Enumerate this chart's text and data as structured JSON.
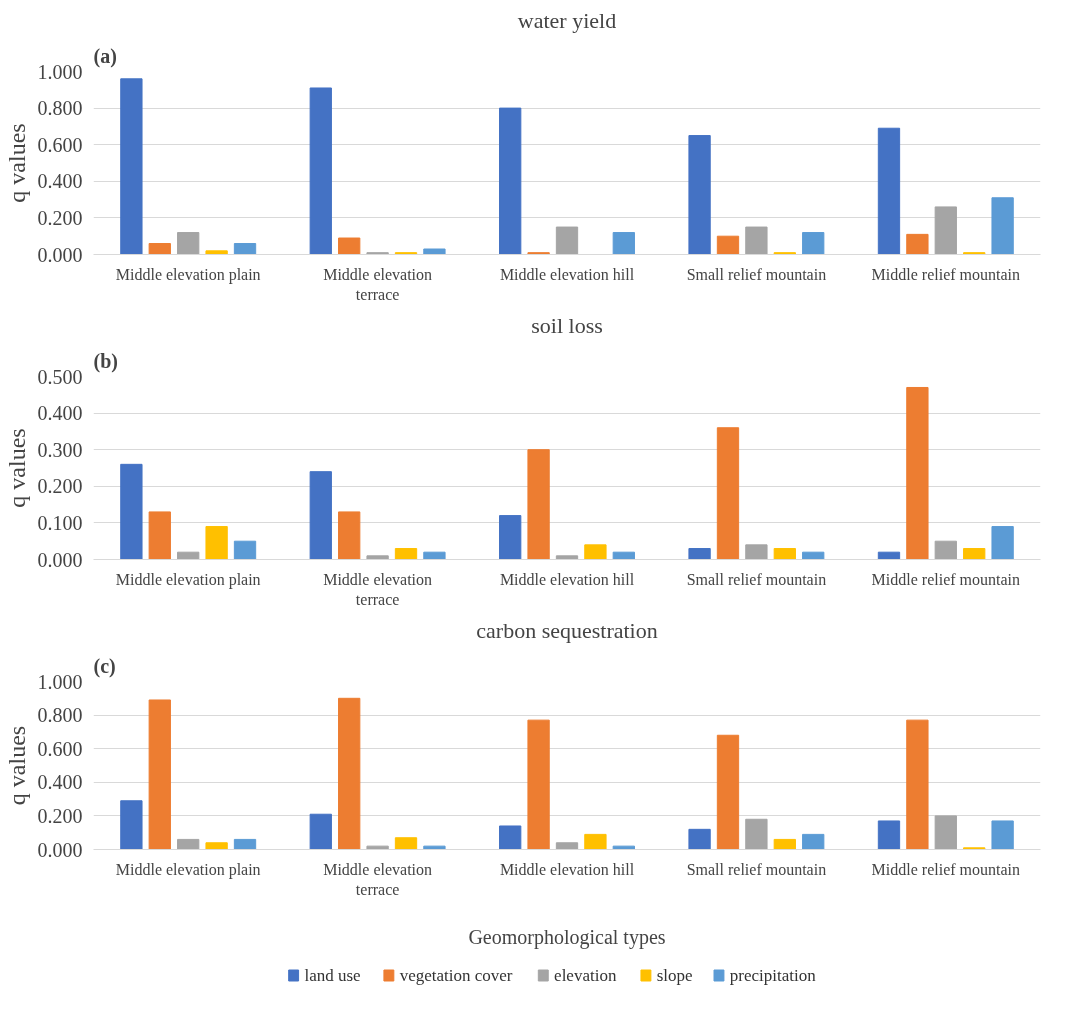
{
  "chart_data": [
    {
      "type": "bar",
      "title": "water yield",
      "annotations": [
        "(a)"
      ],
      "ylabel": "q values",
      "categories": [
        "Middle elevation plain",
        "Middle elevation terrace",
        "Middle elevation hill",
        "Small relief mountain",
        "Middle relief mountain"
      ],
      "ylim": [
        0,
        1.0
      ],
      "yticks": [
        {
          "value": 0,
          "label": "0.000"
        },
        {
          "value": 0.2,
          "label": "0.200"
        },
        {
          "value": 0.4,
          "label": "0.400"
        },
        {
          "value": 0.6,
          "label": "0.600"
        },
        {
          "value": 0.8,
          "label": "0.800"
        },
        {
          "value": 1.0,
          "label": "1.000"
        }
      ],
      "grid": "y",
      "series": [
        {
          "color": "#4472c4",
          "values": [
            0.96,
            0.91,
            0.8,
            0.65,
            0.69
          ]
        },
        {
          "color": "#ed7d31",
          "values": [
            0.06,
            0.09,
            0.01,
            0.1,
            0.11
          ]
        },
        {
          "color": "#a5a5a5",
          "values": [
            0.12,
            0.01,
            0.15,
            0.15,
            0.26
          ]
        },
        {
          "color": "#ffc000",
          "values": [
            0.02,
            0.01,
            0.0,
            0.01,
            0.01
          ]
        },
        {
          "color": "#5b9bd5",
          "values": [
            0.06,
            0.03,
            0.12,
            0.12,
            0.31
          ]
        }
      ]
    },
    {
      "type": "bar",
      "title": "soil loss",
      "annotations": [
        "(b)"
      ],
      "ylabel": "q values",
      "categories": [
        "Middle elevation plain",
        "Middle elevation terrace",
        "Middle elevation hill",
        "Small relief mountain",
        "Middle relief mountain"
      ],
      "ylim": [
        0,
        0.5
      ],
      "yticks": [
        {
          "value": 0,
          "label": "0.000"
        },
        {
          "value": 0.1,
          "label": "0.100"
        },
        {
          "value": 0.2,
          "label": "0.200"
        },
        {
          "value": 0.3,
          "label": "0.300"
        },
        {
          "value": 0.4,
          "label": "0.400"
        },
        {
          "value": 0.5,
          "label": "0.500"
        }
      ],
      "grid": "y",
      "series": [
        {
          "color": "#4472c4",
          "values": [
            0.26,
            0.24,
            0.12,
            0.03,
            0.02
          ]
        },
        {
          "color": "#ed7d31",
          "values": [
            0.13,
            0.13,
            0.3,
            0.36,
            0.47
          ]
        },
        {
          "color": "#a5a5a5",
          "values": [
            0.02,
            0.01,
            0.01,
            0.04,
            0.05
          ]
        },
        {
          "color": "#ffc000",
          "values": [
            0.09,
            0.03,
            0.04,
            0.03,
            0.03
          ]
        },
        {
          "color": "#5b9bd5",
          "values": [
            0.05,
            0.02,
            0.02,
            0.02,
            0.09
          ]
        }
      ]
    },
    {
      "type": "bar",
      "title": "carbon sequestration",
      "annotations": [
        "(c)"
      ],
      "xlabel": "Geomorphological types",
      "ylabel": "q values",
      "categories": [
        "Middle elevation plain",
        "Middle elevation terrace",
        "Middle elevation hill",
        "Small relief mountain",
        "Middle relief mountain"
      ],
      "ylim": [
        0,
        1.0
      ],
      "yticks": [
        {
          "value": 0,
          "label": "0.000"
        },
        {
          "value": 0.2,
          "label": "0.200"
        },
        {
          "value": 0.4,
          "label": "0.400"
        },
        {
          "value": 0.6,
          "label": "0.600"
        },
        {
          "value": 0.8,
          "label": "0.800"
        },
        {
          "value": 1.0,
          "label": "1.000"
        }
      ],
      "grid": "y",
      "legend": "bottom",
      "series": [
        {
          "name": "land use",
          "color": "#4472c4",
          "values": [
            0.29,
            0.21,
            0.14,
            0.12,
            0.17
          ]
        },
        {
          "name": "vegetation cover",
          "color": "#ed7d31",
          "values": [
            0.89,
            0.9,
            0.77,
            0.68,
            0.77
          ]
        },
        {
          "name": "elevation",
          "color": "#a5a5a5",
          "values": [
            0.06,
            0.02,
            0.04,
            0.18,
            0.2
          ]
        },
        {
          "name": "slope",
          "color": "#ffc000",
          "values": [
            0.04,
            0.07,
            0.09,
            0.06,
            0.01
          ]
        },
        {
          "name": "precipitation",
          "color": "#5b9bd5",
          "values": [
            0.06,
            0.02,
            0.02,
            0.09,
            0.17
          ]
        }
      ]
    }
  ]
}
